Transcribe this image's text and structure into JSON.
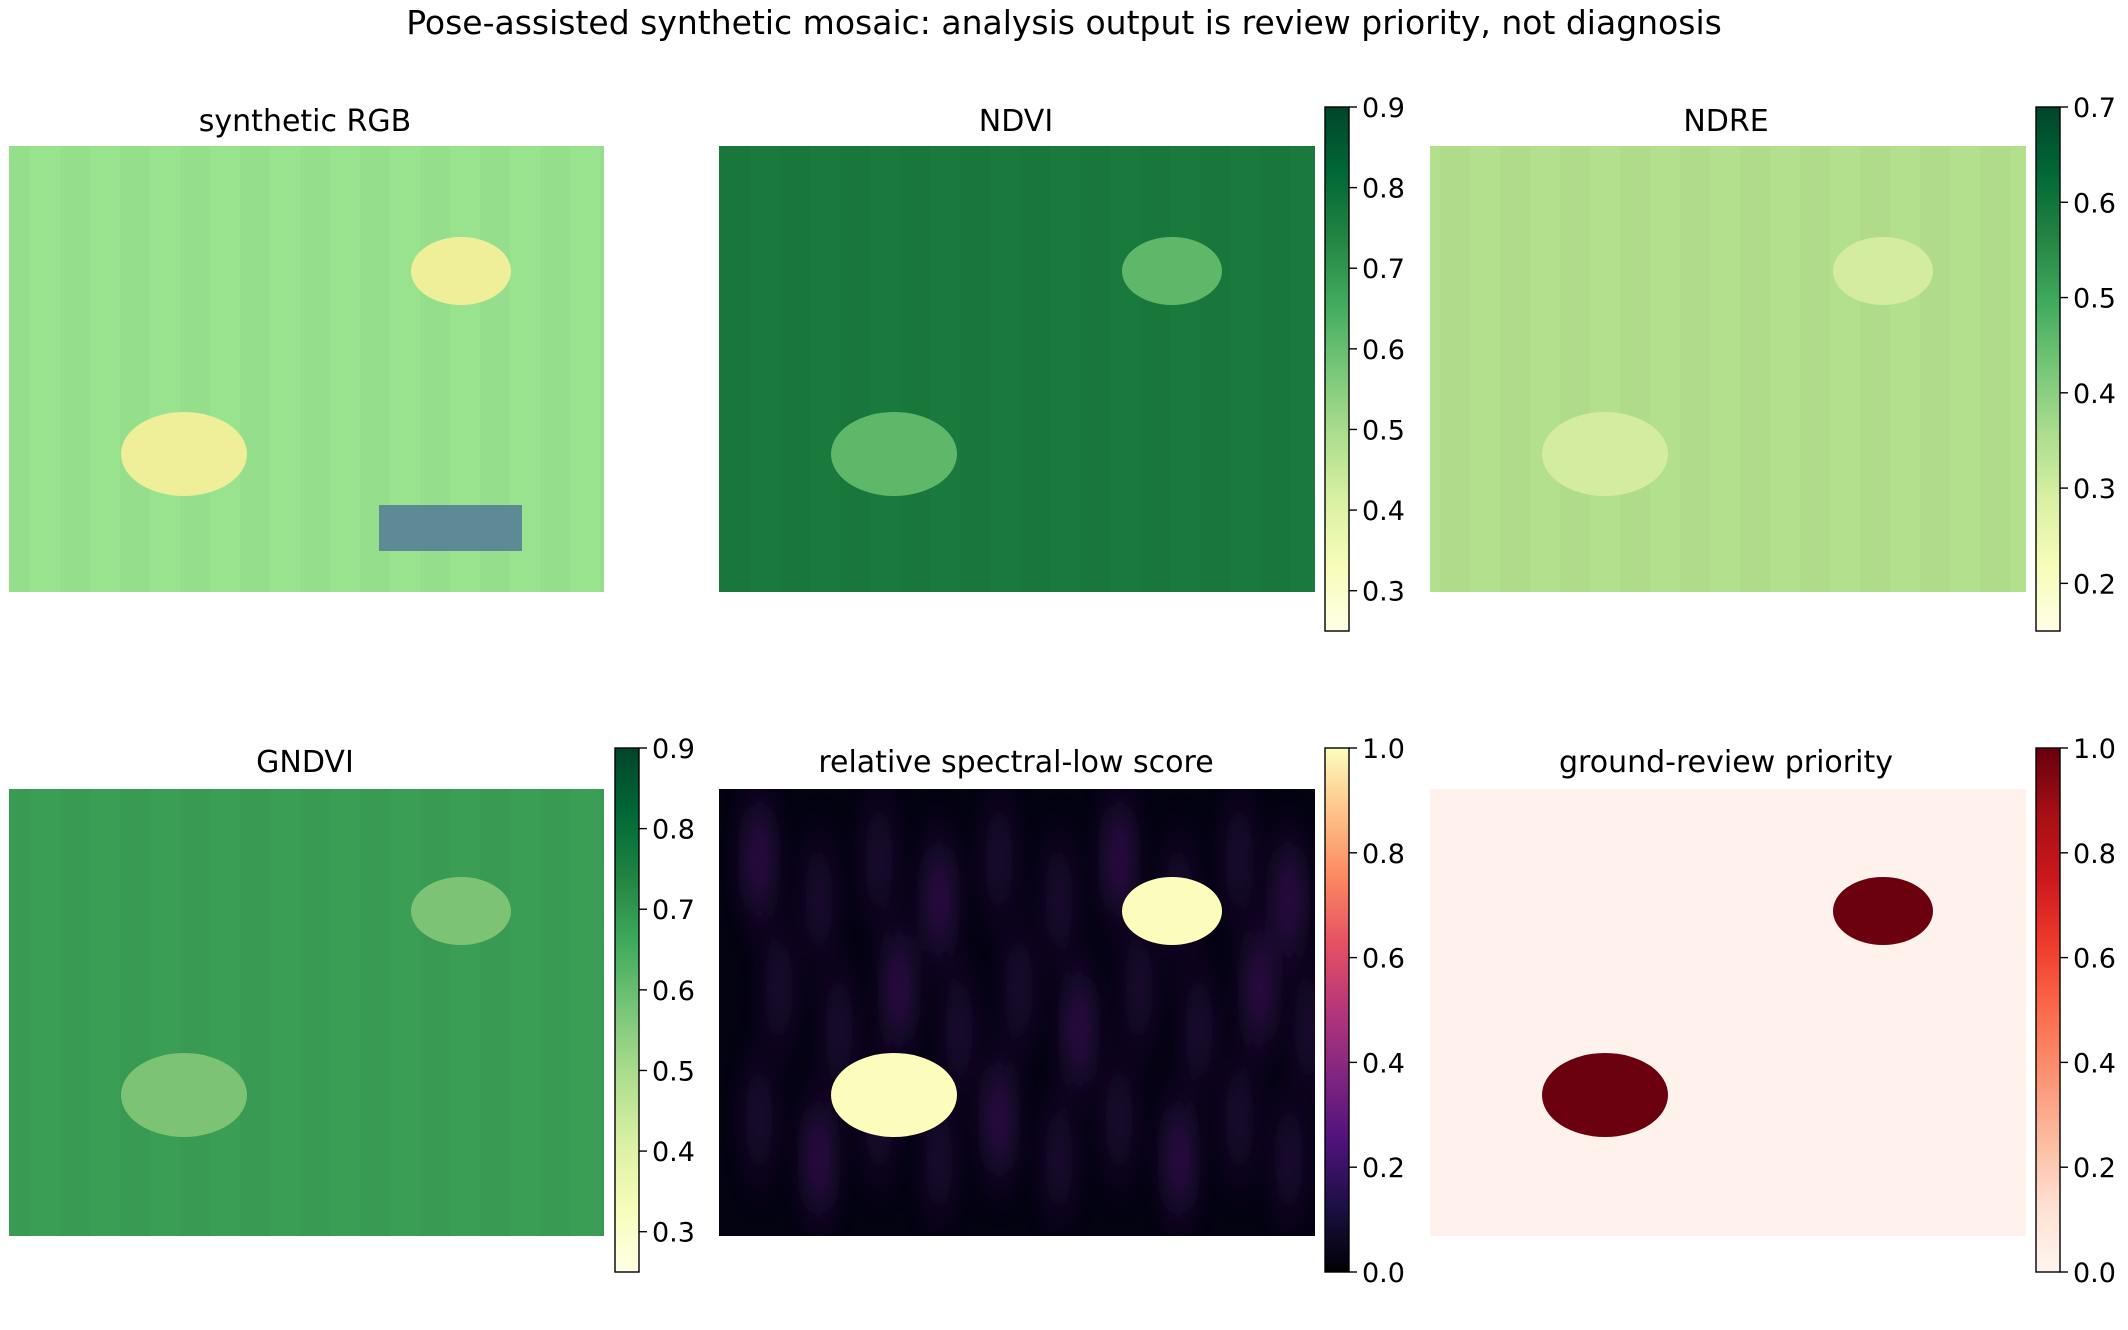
{
  "figure": {
    "title": "Pose-assisted synthetic mosaic: analysis output is review priority, not diagnosis"
  },
  "colors": {
    "rgb_field": "#99e38e",
    "rgb_patch": "#efef9a",
    "rgb_panel_block": "#5e8a96",
    "ndvi_field": "#1a7a3d",
    "ndvi_patch": "#5fb86a",
    "ndre_field": "#b3e08d",
    "ndre_patch": "#d4ec9f",
    "gndvi_field": "#3a9e55",
    "gndvi_patch": "#7dc375",
    "score_background": "#040312",
    "score_band": "#4c1a70",
    "score_patch": "#fcfcbd",
    "priority_background": "#fff1ec",
    "priority_patch": "#6b010e"
  },
  "chart_data": [
    {
      "type": "heatmap",
      "title": "synthetic RGB",
      "colorbar": null,
      "regions": [
        {
          "name": "field",
          "value": "green canopy"
        },
        {
          "name": "low-vigor patch 1",
          "value": "yellow"
        },
        {
          "name": "low-vigor patch 2",
          "value": "yellow"
        },
        {
          "name": "rectangular block",
          "value": "blue-grey"
        }
      ]
    },
    {
      "type": "heatmap",
      "title": "NDVI",
      "colormap": "YlGn",
      "vlim": [
        0.25,
        0.9
      ],
      "colorbar_ticks": [
        "0.3",
        "0.4",
        "0.5",
        "0.6",
        "0.7",
        "0.8",
        "0.9"
      ],
      "colorbar_tick_values": [
        0.3,
        0.4,
        0.5,
        0.6,
        0.7,
        0.8,
        0.9
      ],
      "field_value": 0.78,
      "patch_value": 0.6
    },
    {
      "type": "heatmap",
      "title": "NDRE",
      "colormap": "YlGn",
      "vlim": [
        0.15,
        0.7
      ],
      "colorbar_ticks": [
        "0.2",
        "0.3",
        "0.4",
        "0.5",
        "0.6",
        "0.7"
      ],
      "colorbar_tick_values": [
        0.2,
        0.3,
        0.4,
        0.5,
        0.6,
        0.7
      ],
      "field_value": 0.37,
      "patch_value": 0.3
    },
    {
      "type": "heatmap",
      "title": "GNDVI",
      "colormap": "YlGn",
      "vlim": [
        0.25,
        0.9
      ],
      "colorbar_ticks": [
        "0.3",
        "0.4",
        "0.5",
        "0.6",
        "0.7",
        "0.8",
        "0.9"
      ],
      "colorbar_tick_values": [
        0.3,
        0.4,
        0.5,
        0.6,
        0.7,
        0.8,
        0.9
      ],
      "field_value": 0.67,
      "patch_value": 0.55
    },
    {
      "type": "heatmap",
      "title": "relative spectral-low score",
      "colormap": "magma",
      "vlim": [
        0.0,
        1.0
      ],
      "colorbar_ticks": [
        "0.0",
        "0.2",
        "0.4",
        "0.6",
        "0.8",
        "1.0"
      ],
      "colorbar_tick_values": [
        0.0,
        0.2,
        0.4,
        0.6,
        0.8,
        1.0
      ],
      "field_value": 0.05,
      "patch_value": 1.0
    },
    {
      "type": "heatmap",
      "title": "ground-review priority",
      "colormap": "Reds",
      "vlim": [
        0.0,
        1.0
      ],
      "colorbar_ticks": [
        "0.0",
        "0.2",
        "0.4",
        "0.6",
        "0.8",
        "1.0"
      ],
      "colorbar_tick_values": [
        0.0,
        0.2,
        0.4,
        0.6,
        0.8,
        1.0
      ],
      "field_value": 0.0,
      "patch_value": 1.0
    }
  ]
}
